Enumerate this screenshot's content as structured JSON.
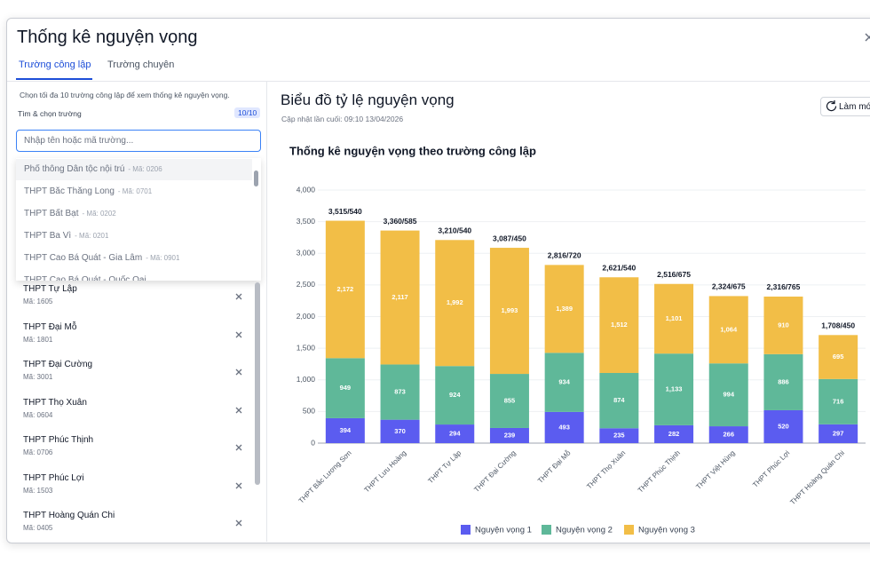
{
  "modal": {
    "title": "Thống kê nguyện vọng",
    "tabs": [
      "Trường công lập",
      "Trường chuyên"
    ]
  },
  "sidebar": {
    "hint": "Chọn tối đa 10 trường công lập để xem thống kê nguyện vọng.",
    "search_label": "Tìm & chọn trường",
    "count": "10/10",
    "placeholder": "Nhập tên hoặc mã trường...",
    "dropdown": [
      {
        "name": "Phổ thông Dân tộc nội trú",
        "code": "- Mã: 0206"
      },
      {
        "name": "THPT Bắc Thăng Long",
        "code": "- Mã: 0701"
      },
      {
        "name": "THPT Bất Bạt",
        "code": "- Mã: 0202"
      },
      {
        "name": "THPT Ba Vì",
        "code": "- Mã: 0201"
      },
      {
        "name": "THPT Cao Bá Quát - Gia Lâm",
        "code": "- Mã: 0901"
      },
      {
        "name": "THPT Cao Bá Quát - Quốc Oai"
      }
    ],
    "selected": [
      {
        "name": "THPT Tự Lập",
        "code": "Mã: 1605"
      },
      {
        "name": "THPT Đại Mỗ",
        "code": "Mã: 1801"
      },
      {
        "name": "THPT Đại Cường",
        "code": "Mã: 3001"
      },
      {
        "name": "THPT Thọ Xuân",
        "code": "Mã: 0604"
      },
      {
        "name": "THPT Phúc Thịnh",
        "code": "Mã: 0706"
      },
      {
        "name": "THPT Phúc Lợi",
        "code": "Mã: 1503"
      },
      {
        "name": "THPT Hoàng Quán Chi",
        "code": "Mã: 0405"
      }
    ]
  },
  "panel": {
    "title": "Biểu đồ tỷ lệ nguyện vọng",
    "updated": "Cập nhật lần cuối: 09:10 13/04/2026",
    "refresh": "Làm mới"
  },
  "chart_data": {
    "type": "stacked_bar",
    "title": "Thống kê nguyện vọng theo trường công lập",
    "categories": [
      "THPT Bắc Lương Sơn",
      "THPT Lưu Hoàng",
      "THPT Tự Lập",
      "THPT Đại Cường",
      "THPT Đại Mỗ",
      "THPT Thọ Xuân",
      "THPT Phúc Thịnh",
      "THPT Việt Hùng",
      "THPT Phúc Lợi",
      "THPT Hoàng Quán Chi"
    ],
    "series": [
      {
        "name": "Nguyện vọng 1",
        "color": "#5b5cf0",
        "values": [
          394,
          370,
          294,
          239,
          493,
          235,
          282,
          266,
          520,
          297
        ]
      },
      {
        "name": "Nguyện vọng 2",
        "color": "#5fb899",
        "values": [
          949,
          873,
          924,
          855,
          934,
          874,
          1133,
          994,
          886,
          716
        ],
        "value_labels": [
          "949",
          "873",
          "924",
          "855",
          "934",
          "874",
          "1,133",
          "994",
          "886",
          "716"
        ]
      },
      {
        "name": "Nguyện vọng 3",
        "color": "#f2be47",
        "values": [
          2172,
          2117,
          1992,
          1993,
          1389,
          1512,
          1101,
          1064,
          910,
          695
        ],
        "value_labels": [
          "2,172",
          "2,117",
          "1,992",
          "1,993",
          "1,389",
          "1,512",
          "1,101",
          "1,064",
          "910",
          "695"
        ]
      }
    ],
    "total_labels": [
      "3,515/540",
      "3,360/585",
      "3,210/540",
      "3,087/450",
      "2,816/720",
      "2,621/540",
      "2,516/675",
      "2,324/675",
      "2,316/765",
      "1,708/450"
    ],
    "ylim": [
      0,
      4000
    ],
    "yticks": [
      0,
      500,
      {
        "value": 1000,
        "label": "1,000"
      },
      {
        "value": 1500,
        "label": "1,500"
      },
      {
        "value": 2000,
        "label": "2,000"
      },
      {
        "value": 2500,
        "label": "2,500"
      },
      {
        "value": 3000,
        "label": "3,000"
      },
      {
        "value": 3500,
        "label": "3,500"
      },
      {
        "value": 4000,
        "label": "4,000"
      }
    ],
    "grid": true,
    "legend": "bottom"
  }
}
